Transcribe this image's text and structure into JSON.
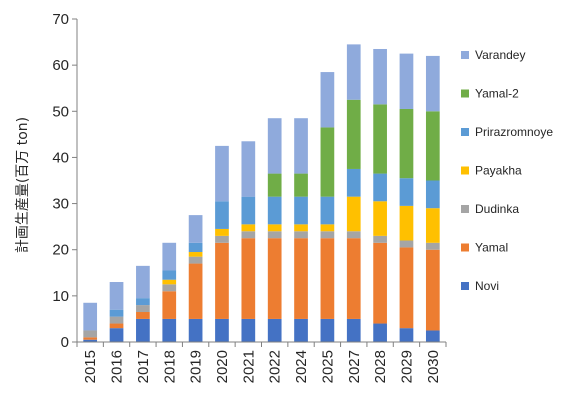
{
  "chart_data": {
    "type": "bar",
    "stacked": true,
    "ylabel": "計画生産量(百万 ton)",
    "xlabel": "",
    "ylim": [
      0,
      70
    ],
    "yticks": [
      0,
      10,
      20,
      30,
      40,
      50,
      60,
      70
    ],
    "grid": false,
    "legend_position": "right",
    "categories": [
      "2015",
      "2016",
      "2017",
      "2018",
      "2019",
      "2020",
      "2021",
      "2022",
      "2024",
      "2025",
      "2027",
      "2028",
      "2029",
      "2030"
    ],
    "series": [
      {
        "name": "Novi",
        "color": "#4472C4",
        "values": [
          0.5,
          3.0,
          5.0,
          5.0,
          5.0,
          5.0,
          5.0,
          5.0,
          5.0,
          5.0,
          5.0,
          4.0,
          3.0,
          2.5
        ]
      },
      {
        "name": "Yamal",
        "color": "#ED7D31",
        "values": [
          0.5,
          1.0,
          1.5,
          6.0,
          12.0,
          16.5,
          17.5,
          17.5,
          17.5,
          17.5,
          17.5,
          17.5,
          17.5,
          17.5
        ]
      },
      {
        "name": "Dudinka",
        "color": "#A5A5A5",
        "values": [
          1.5,
          1.5,
          1.5,
          1.5,
          1.5,
          1.5,
          1.5,
          1.5,
          1.5,
          1.5,
          1.5,
          1.5,
          1.5,
          1.5
        ]
      },
      {
        "name": "Payakha",
        "color": "#FFC000",
        "values": [
          0,
          0,
          0,
          1.0,
          1.0,
          1.5,
          1.5,
          1.5,
          1.5,
          1.5,
          7.5,
          7.5,
          7.5,
          7.5
        ]
      },
      {
        "name": "Prirazromnoye",
        "color": "#5B9BD5",
        "values": [
          0,
          1.5,
          1.5,
          2.0,
          2.0,
          6.0,
          6.0,
          6.0,
          6.0,
          6.0,
          6.0,
          6.0,
          6.0,
          6.0
        ]
      },
      {
        "name": "Yamal-2",
        "color": "#70AD47",
        "values": [
          0,
          0,
          0,
          0,
          0,
          0,
          0,
          5.0,
          5.0,
          15.0,
          15.0,
          15.0,
          15.0,
          15.0
        ]
      },
      {
        "name": "Varandey",
        "color": "#8FAADC",
        "values": [
          6.0,
          6.0,
          7.0,
          6.0,
          6.0,
          12.0,
          12.0,
          12.0,
          12.0,
          12.0,
          12.0,
          12.0,
          12.0,
          12.0
        ]
      }
    ],
    "legend_order": [
      "Varandey",
      "Yamal-2",
      "Prirazromnoye",
      "Payakha",
      "Dudinka",
      "Yamal",
      "Novi"
    ]
  }
}
